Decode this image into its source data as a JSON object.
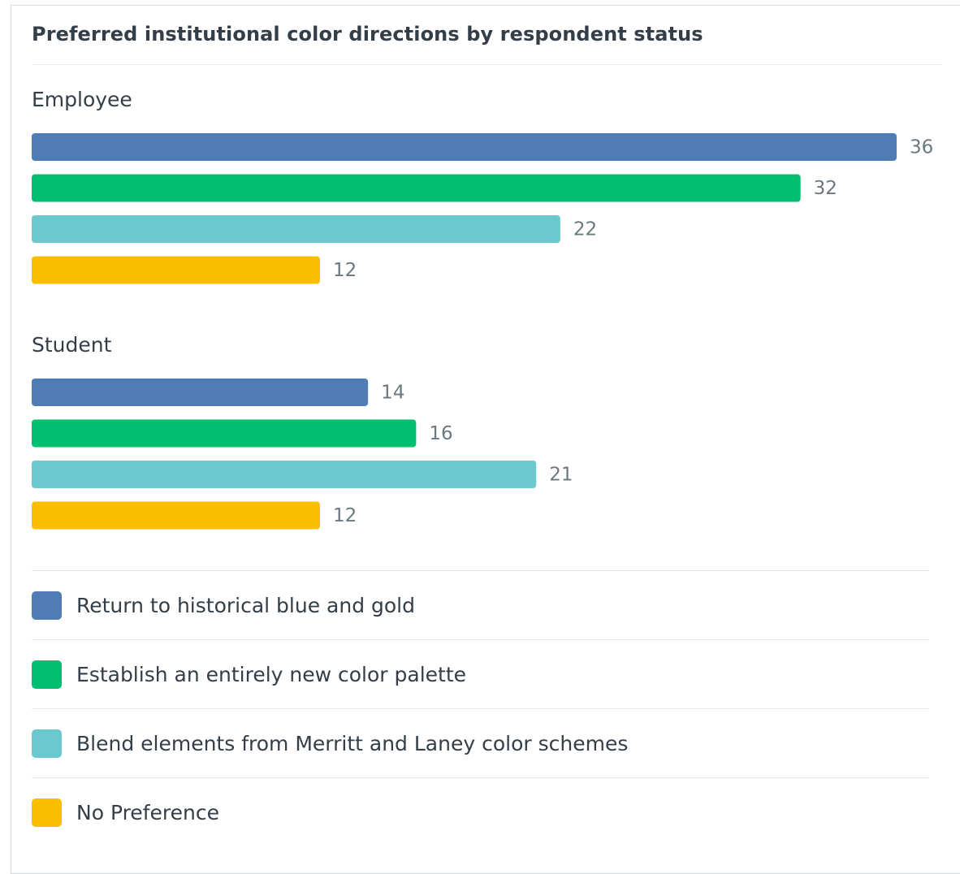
{
  "chart_data": {
    "type": "bar",
    "orientation": "horizontal",
    "title": "Preferred institutional color directions by respondent status",
    "groups": [
      "Employee",
      "Student"
    ],
    "series": [
      {
        "name": "Return to historical blue and gold",
        "color": "#507cb6",
        "values": [
          36,
          14
        ]
      },
      {
        "name": "Establish an entirely new color palette",
        "color": "#00bf6f",
        "values": [
          32,
          16
        ]
      },
      {
        "name": "Blend elements from Merritt and Laney color schemes",
        "color": "#6bc8cd",
        "values": [
          22,
          21
        ]
      },
      {
        "name": "No Preference",
        "color": "#f9be00",
        "values": [
          12,
          12
        ]
      }
    ],
    "xlim": [
      0,
      36
    ],
    "grid": false,
    "legend_position": "bottom"
  }
}
